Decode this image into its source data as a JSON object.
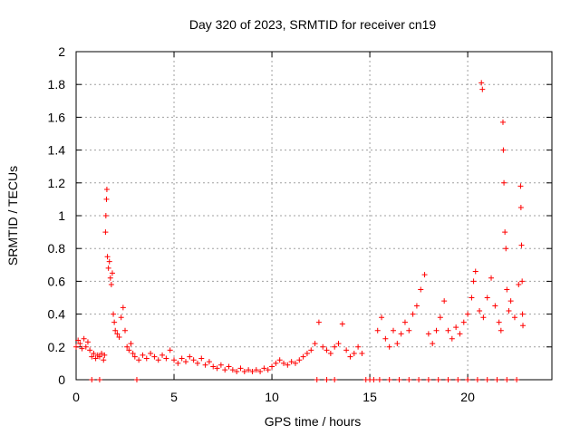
{
  "chart_data": {
    "type": "scatter",
    "title": "Day 320 of 2023, SRMTID for receiver cn19",
    "xlabel": "GPS time / hours",
    "ylabel": "SRMTID / TECUs",
    "xlim": [
      0,
      24.3
    ],
    "ylim": [
      0,
      2
    ],
    "xticks": [
      0,
      5,
      10,
      15,
      20
    ],
    "xtick_labels": [
      "0",
      "5",
      "10",
      "15",
      "20"
    ],
    "yticks": [
      0,
      0.2,
      0.4,
      0.6,
      0.8,
      1,
      1.2,
      1.4,
      1.6,
      1.8,
      2
    ],
    "ytick_labels": [
      "0",
      "0.2",
      "0.4",
      "0.6",
      "0.8",
      "1",
      "1.2",
      "1.4",
      "1.6",
      "1.8",
      "2"
    ],
    "grid": true,
    "marker": "+",
    "color": "#ff0000",
    "series": [
      {
        "name": "cn19",
        "points": [
          [
            0.0,
            0.2
          ],
          [
            0.1,
            0.24
          ],
          [
            0.2,
            0.22
          ],
          [
            0.3,
            0.19
          ],
          [
            0.4,
            0.25
          ],
          [
            0.5,
            0.2
          ],
          [
            0.6,
            0.23
          ],
          [
            0.7,
            0.18
          ],
          [
            0.8,
            0.14
          ],
          [
            0.9,
            0.16
          ],
          [
            1.0,
            0.13
          ],
          [
            1.1,
            0.15
          ],
          [
            1.2,
            0.14
          ],
          [
            1.3,
            0.16
          ],
          [
            1.4,
            0.12
          ],
          [
            1.45,
            0.15
          ],
          [
            1.5,
            0.9
          ],
          [
            1.52,
            1.0
          ],
          [
            1.55,
            1.1
          ],
          [
            1.57,
            1.16
          ],
          [
            1.6,
            0.75
          ],
          [
            1.65,
            0.68
          ],
          [
            1.7,
            0.72
          ],
          [
            1.75,
            0.62
          ],
          [
            1.8,
            0.58
          ],
          [
            1.85,
            0.65
          ],
          [
            1.9,
            0.4
          ],
          [
            1.95,
            0.35
          ],
          [
            2.0,
            0.3
          ],
          [
            2.1,
            0.28
          ],
          [
            2.2,
            0.26
          ],
          [
            2.3,
            0.38
          ],
          [
            2.4,
            0.44
          ],
          [
            2.5,
            0.3
          ],
          [
            2.6,
            0.2
          ],
          [
            2.7,
            0.18
          ],
          [
            2.8,
            0.22
          ],
          [
            2.9,
            0.16
          ],
          [
            3.0,
            0.14
          ],
          [
            3.2,
            0.12
          ],
          [
            3.4,
            0.15
          ],
          [
            3.6,
            0.13
          ],
          [
            3.8,
            0.16
          ],
          [
            4.0,
            0.14
          ],
          [
            4.2,
            0.12
          ],
          [
            4.4,
            0.15
          ],
          [
            4.6,
            0.13
          ],
          [
            4.8,
            0.18
          ],
          [
            5.0,
            0.12
          ],
          [
            5.2,
            0.1
          ],
          [
            5.4,
            0.13
          ],
          [
            5.6,
            0.11
          ],
          [
            5.8,
            0.14
          ],
          [
            6.0,
            0.12
          ],
          [
            6.2,
            0.1
          ],
          [
            6.4,
            0.13
          ],
          [
            6.6,
            0.09
          ],
          [
            6.8,
            0.11
          ],
          [
            7.0,
            0.08
          ],
          [
            7.2,
            0.07
          ],
          [
            7.4,
            0.09
          ],
          [
            7.6,
            0.06
          ],
          [
            7.8,
            0.08
          ],
          [
            8.0,
            0.06
          ],
          [
            8.2,
            0.05
          ],
          [
            8.4,
            0.07
          ],
          [
            8.6,
            0.05
          ],
          [
            8.8,
            0.06
          ],
          [
            9.0,
            0.05
          ],
          [
            9.2,
            0.06
          ],
          [
            9.4,
            0.05
          ],
          [
            9.6,
            0.07
          ],
          [
            9.8,
            0.06
          ],
          [
            10.0,
            0.08
          ],
          [
            10.2,
            0.1
          ],
          [
            10.4,
            0.12
          ],
          [
            10.6,
            0.1
          ],
          [
            10.8,
            0.09
          ],
          [
            11.0,
            0.11
          ],
          [
            11.2,
            0.1
          ],
          [
            11.4,
            0.12
          ],
          [
            11.6,
            0.14
          ],
          [
            11.8,
            0.16
          ],
          [
            12.0,
            0.18
          ],
          [
            12.2,
            0.22
          ],
          [
            12.4,
            0.35
          ],
          [
            12.6,
            0.2
          ],
          [
            12.8,
            0.18
          ],
          [
            13.0,
            0.16
          ],
          [
            13.2,
            0.2
          ],
          [
            13.4,
            0.22
          ],
          [
            13.6,
            0.34
          ],
          [
            13.8,
            0.18
          ],
          [
            14.0,
            0.14
          ],
          [
            14.2,
            0.16
          ],
          [
            14.4,
            0.2
          ],
          [
            14.6,
            0.16
          ],
          [
            15.0,
            0.0
          ],
          [
            15.5,
            0.0
          ],
          [
            16.0,
            0.0
          ],
          [
            16.5,
            0.0
          ],
          [
            17.0,
            0.0
          ],
          [
            17.5,
            0.0
          ],
          [
            18.0,
            0.0
          ],
          [
            18.5,
            0.0
          ],
          [
            19.0,
            0.0
          ],
          [
            19.5,
            0.0
          ],
          [
            20.0,
            0.0
          ],
          [
            20.5,
            0.0
          ],
          [
            21.0,
            0.0
          ],
          [
            21.5,
            0.0
          ],
          [
            22.0,
            0.0
          ],
          [
            22.5,
            0.0
          ],
          [
            3.1,
            0.0
          ],
          [
            0.8,
            0.0
          ],
          [
            1.2,
            0.0
          ],
          [
            12.3,
            0.0
          ],
          [
            12.8,
            0.0
          ],
          [
            13.2,
            0.0
          ],
          [
            14.8,
            0.0
          ],
          [
            15.2,
            0.0
          ],
          [
            15.4,
            0.3
          ],
          [
            15.6,
            0.38
          ],
          [
            15.8,
            0.25
          ],
          [
            16.0,
            0.2
          ],
          [
            16.2,
            0.3
          ],
          [
            16.4,
            0.22
          ],
          [
            16.6,
            0.28
          ],
          [
            16.8,
            0.35
          ],
          [
            17.0,
            0.3
          ],
          [
            17.2,
            0.4
          ],
          [
            17.4,
            0.45
          ],
          [
            17.6,
            0.55
          ],
          [
            17.8,
            0.64
          ],
          [
            18.0,
            0.28
          ],
          [
            18.2,
            0.22
          ],
          [
            18.4,
            0.3
          ],
          [
            18.6,
            0.38
          ],
          [
            18.8,
            0.48
          ],
          [
            19.0,
            0.3
          ],
          [
            19.2,
            0.25
          ],
          [
            19.4,
            0.32
          ],
          [
            19.6,
            0.28
          ],
          [
            19.8,
            0.35
          ],
          [
            20.0,
            0.4
          ],
          [
            20.2,
            0.5
          ],
          [
            20.3,
            0.6
          ],
          [
            20.4,
            0.66
          ],
          [
            20.6,
            0.42
          ],
          [
            20.8,
            0.38
          ],
          [
            20.7,
            1.81
          ],
          [
            20.75,
            1.77
          ],
          [
            21.0,
            0.5
          ],
          [
            21.2,
            0.62
          ],
          [
            21.4,
            0.45
          ],
          [
            21.6,
            0.35
          ],
          [
            21.7,
            0.3
          ],
          [
            21.8,
            1.57
          ],
          [
            21.82,
            1.4
          ],
          [
            21.85,
            1.2
          ],
          [
            21.9,
            0.9
          ],
          [
            21.95,
            0.8
          ],
          [
            22.0,
            0.55
          ],
          [
            22.1,
            0.42
          ],
          [
            22.2,
            0.48
          ],
          [
            22.4,
            0.38
          ],
          [
            22.6,
            0.58
          ],
          [
            22.7,
            1.18
          ],
          [
            22.72,
            1.05
          ],
          [
            22.75,
            0.82
          ],
          [
            22.78,
            0.6
          ],
          [
            22.8,
            0.4
          ],
          [
            22.82,
            0.33
          ]
        ]
      }
    ]
  }
}
